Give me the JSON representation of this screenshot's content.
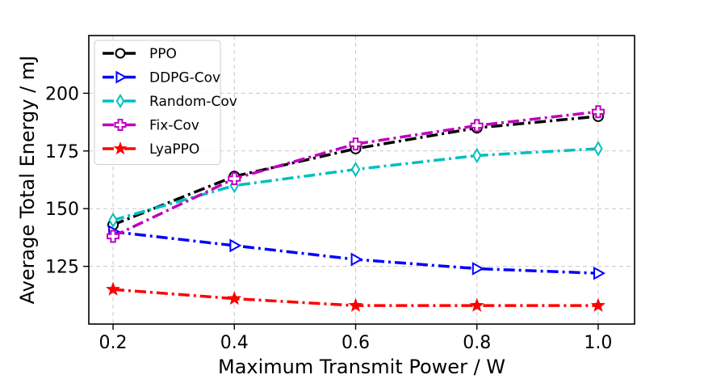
{
  "chart_data": {
    "type": "line",
    "title": "",
    "xlabel": "Maximum Transmit Power / W",
    "ylabel": "Average Total Energy / mJ",
    "x": [
      0.2,
      0.4,
      0.6,
      0.8,
      1.0
    ],
    "xticks": [
      0.2,
      0.4,
      0.6,
      0.8,
      1.0
    ],
    "xtick_labels": [
      "0.2",
      "0.4",
      "0.6",
      "0.8",
      "1.0"
    ],
    "yticks": [
      125,
      150,
      175,
      200
    ],
    "ytick_labels": [
      "125",
      "150",
      "175",
      "200"
    ],
    "xlim": [
      0.16,
      1.06
    ],
    "ylim": [
      100,
      225
    ],
    "grid": true,
    "legend_position": "top-left",
    "series": [
      {
        "name": "PPO",
        "values": [
          143,
          164,
          176,
          185,
          190
        ],
        "color": "#000000",
        "marker": "circle",
        "linestyle": "dashdot"
      },
      {
        "name": "DDPG-Cov",
        "values": [
          140,
          134,
          128,
          124,
          122
        ],
        "color": "#0000ff",
        "marker": "triangle-right",
        "linestyle": "dashdot"
      },
      {
        "name": "Random-Cov",
        "values": [
          145,
          160,
          167,
          173,
          176
        ],
        "color": "#00bfbf",
        "marker": "thin-diamond",
        "linestyle": "dashdot"
      },
      {
        "name": "Fix-Cov",
        "values": [
          138,
          163,
          178,
          186,
          192
        ],
        "color": "#bf00bf",
        "marker": "plus",
        "linestyle": "dashdot"
      },
      {
        "name": "LyaPPO",
        "values": [
          115,
          111,
          108,
          108,
          108
        ],
        "color": "#ff0000",
        "marker": "star",
        "linestyle": "dashdot"
      }
    ]
  }
}
